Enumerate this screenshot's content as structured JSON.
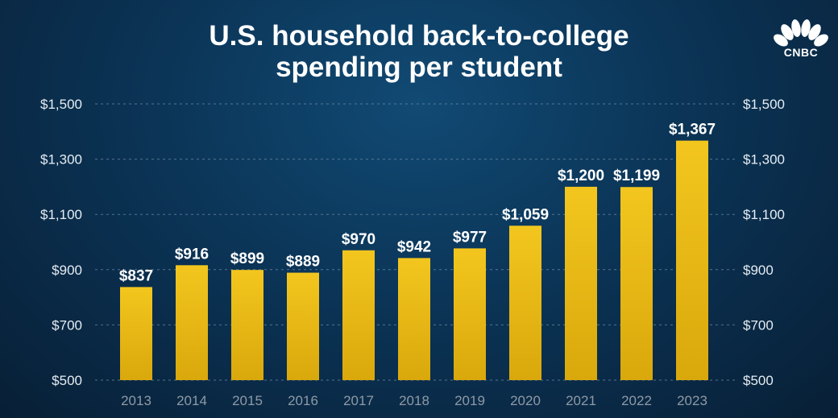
{
  "header": {
    "title_line1": "U.S. household back-to-college",
    "title_line2": "spending per student"
  },
  "brand": {
    "logo_text": "CNBC"
  },
  "colors": {
    "bar_top": "#f3c61e",
    "bar_bottom": "#d9a80c",
    "text": "#ffffff"
  },
  "chart_data": {
    "type": "bar",
    "title": "U.S. household back-to-college spending per student",
    "categories": [
      "2013",
      "2014",
      "2015",
      "2016",
      "2017",
      "2018",
      "2019",
      "2020",
      "2021",
      "2022",
      "2023"
    ],
    "values": [
      837,
      916,
      899,
      889,
      970,
      942,
      977,
      1059,
      1200,
      1199,
      1367
    ],
    "value_labels": [
      "$837",
      "$916",
      "$899",
      "$889",
      "$970",
      "$942",
      "$977",
      "$1,059",
      "$1,200",
      "$1,199",
      "$1,367"
    ],
    "ylim": [
      500,
      1500
    ],
    "yticks": [
      500,
      700,
      900,
      1100,
      1300,
      1500
    ],
    "ytick_labels": [
      "$500",
      "$700",
      "$900",
      "$1,100",
      "$1,300",
      "$1,500"
    ],
    "xlabel": "",
    "ylabel": "",
    "grid": true,
    "legend": "none"
  }
}
